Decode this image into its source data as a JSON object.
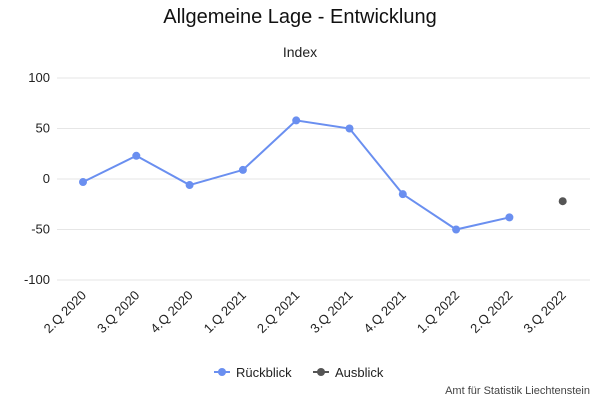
{
  "chart_data": {
    "type": "line",
    "title": "Allgemeine Lage - Entwicklung",
    "subtitle": "Index",
    "categories": [
      "2.Q 2020",
      "3.Q 2020",
      "4.Q 2020",
      "1.Q 2021",
      "2.Q 2021",
      "3.Q 2021",
      "4.Q 2021",
      "1.Q 2022",
      "2.Q 2022",
      "3.Q 2022"
    ],
    "yticks": [
      100,
      50,
      0,
      -50,
      -100
    ],
    "ylim": [
      -100,
      100
    ],
    "grid": true,
    "legend_position": "bottom-center",
    "series": [
      {
        "name": "Rückblick",
        "color": "#6a8ff0",
        "values": [
          -3,
          23,
          -6,
          9,
          58,
          50,
          -15,
          -50,
          -38,
          null
        ]
      },
      {
        "name": "Ausblick",
        "color": "#555555",
        "values": [
          null,
          null,
          null,
          null,
          null,
          null,
          null,
          null,
          null,
          -22
        ]
      }
    ],
    "credit": "Amt für Statistik Liechtenstein"
  }
}
